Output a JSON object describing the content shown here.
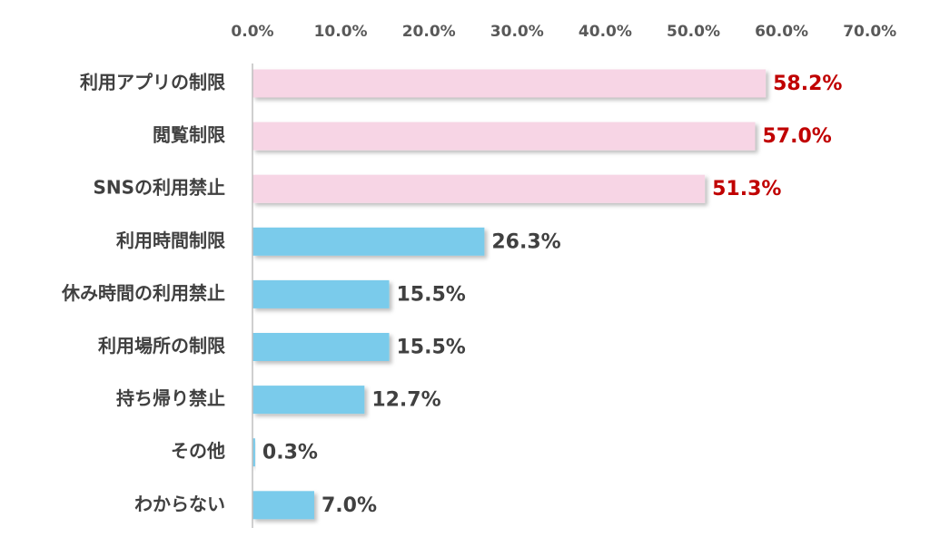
{
  "chart_data": {
    "type": "bar",
    "orientation": "horizontal",
    "title": "",
    "xlabel": "",
    "ylabel": "",
    "xlim": [
      0,
      70
    ],
    "x_ticks": [
      0,
      10,
      20,
      30,
      40,
      50,
      60,
      70
    ],
    "x_tick_labels": [
      "0.0%",
      "10.0%",
      "20.0%",
      "30.0%",
      "40.0%",
      "50.0%",
      "60.0%",
      "70.0%"
    ],
    "x_axis_position": "top",
    "grid": false,
    "legend": "none",
    "categories": [
      "利用アプリの制限",
      "閲覧制限",
      "SNSの利用禁止",
      "利用時間制限",
      "休み時間の利用禁止",
      "利用場所の制限",
      "持ち帰り禁止",
      "その他",
      "わからない"
    ],
    "values": [
      58.2,
      57.0,
      51.3,
      26.3,
      15.5,
      15.5,
      12.7,
      0.3,
      7.0
    ],
    "value_labels": [
      "58.2%",
      "57.0%",
      "51.3%",
      "26.3%",
      "15.5%",
      "15.5%",
      "12.7%",
      "0.3%",
      "7.0%"
    ],
    "highlighted": [
      true,
      true,
      true,
      false,
      false,
      false,
      false,
      false,
      false
    ],
    "colors": {
      "highlight_bar": "#F7D5E5",
      "normal_bar": "#7ACBEB",
      "highlight_label": "#C00000",
      "normal_label": "#404040",
      "tick_label": "#595959",
      "category_label": "#404040",
      "axis_line": "#BFBFBF"
    }
  }
}
